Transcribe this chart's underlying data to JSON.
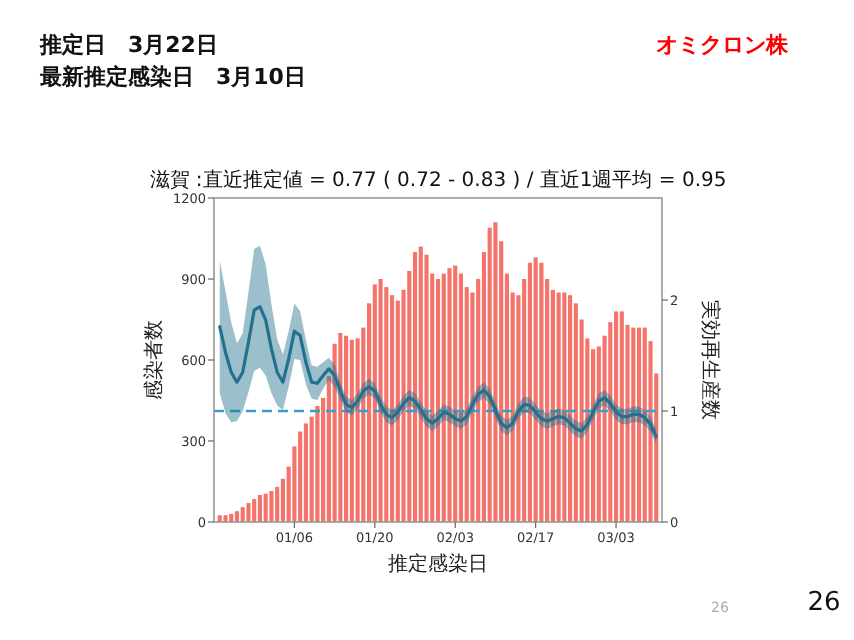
{
  "chart_data": {
    "type": "bar",
    "title": "滋賀 :直近推定値 = 0.77 ( 0.72 - 0.83 ) / 直近1週平均 = 0.95",
    "xlabel": "推定感染日",
    "ylabel": "感染者数",
    "y2label": "実効再生産数",
    "annotations": [
      "推定日　3月22日",
      "最新推定感染日　3月10日",
      "オミクロン株",
      "26",
      "26"
    ],
    "categories": [
      null,
      null,
      null,
      null,
      null,
      null,
      null,
      null,
      null,
      null,
      null,
      null,
      null,
      "01/06",
      null,
      null,
      null,
      null,
      null,
      null,
      null,
      null,
      null,
      null,
      null,
      null,
      null,
      "01/20",
      null,
      null,
      null,
      null,
      null,
      null,
      null,
      null,
      null,
      null,
      null,
      null,
      null,
      "02/03",
      null,
      null,
      null,
      null,
      null,
      null,
      null,
      null,
      null,
      null,
      null,
      null,
      null,
      "02/17",
      null,
      null,
      null,
      null,
      null,
      null,
      null,
      null,
      null,
      null,
      null,
      null,
      null,
      "03/03",
      null,
      null,
      null,
      null,
      null,
      null,
      null
    ],
    "ylim": [
      0,
      1200
    ],
    "yticks": [
      0,
      300,
      600,
      900,
      1200
    ],
    "y2lim": [
      0,
      2.92
    ],
    "y2ticks": [
      0,
      1,
      2
    ],
    "ref_lines": [
      {
        "axis": "y2",
        "value": 1,
        "color": "#3a9fc6",
        "line_style": "dashed"
      }
    ],
    "series": [
      {
        "color": "#f4736b",
        "values": [
          25,
          25,
          30,
          40,
          55,
          70,
          85,
          100,
          105,
          115,
          130,
          160,
          205,
          280,
          335,
          365,
          390,
          430,
          460,
          540,
          660,
          700,
          690,
          675,
          680,
          720,
          810,
          880,
          900,
          870,
          840,
          820,
          860,
          930,
          1000,
          1020,
          990,
          920,
          900,
          920,
          940,
          950,
          920,
          870,
          850,
          900,
          1000,
          1090,
          1110,
          1040,
          920,
          850,
          840,
          900,
          960,
          980,
          960,
          900,
          860,
          850,
          850,
          840,
          810,
          750,
          680,
          640,
          650,
          690,
          740,
          780,
          780,
          730,
          720,
          720,
          720,
          670,
          550
        ]
      },
      {
        "type": "line",
        "axis": "y2",
        "color": "#23708f",
        "values": [
          1.76,
          1.53,
          1.35,
          1.26,
          1.35,
          1.62,
          1.91,
          1.94,
          1.82,
          1.56,
          1.35,
          1.26,
          1.47,
          1.72,
          1.68,
          1.44,
          1.26,
          1.25,
          1.32,
          1.38,
          1.32,
          1.18,
          1.06,
          1.03,
          1.09,
          1.18,
          1.22,
          1.18,
          1.06,
          0.97,
          0.94,
          0.99,
          1.07,
          1.12,
          1.09,
          1.01,
          0.93,
          0.89,
          0.93,
          0.99,
          0.97,
          0.93,
          0.91,
          0.95,
          1.06,
          1.15,
          1.19,
          1.13,
          1.01,
          0.89,
          0.85,
          0.89,
          1.0,
          1.06,
          1.05,
          0.99,
          0.93,
          0.91,
          0.93,
          0.95,
          0.94,
          0.89,
          0.84,
          0.82,
          0.88,
          0.99,
          1.09,
          1.12,
          1.07,
          0.99,
          0.95,
          0.95,
          0.97,
          0.97,
          0.94,
          0.88,
          0.77
        ],
        "upper": [
          2.36,
          2.08,
          1.8,
          1.61,
          1.7,
          2.07,
          2.46,
          2.49,
          2.32,
          1.96,
          1.65,
          1.51,
          1.72,
          1.97,
          1.9,
          1.64,
          1.41,
          1.4,
          1.44,
          1.48,
          1.42,
          1.26,
          1.13,
          1.1,
          1.16,
          1.25,
          1.29,
          1.25,
          1.13,
          1.04,
          1.01,
          1.06,
          1.14,
          1.19,
          1.16,
          1.08,
          1.0,
          0.96,
          1.0,
          1.06,
          1.04,
          1.0,
          0.98,
          1.02,
          1.13,
          1.22,
          1.26,
          1.2,
          1.08,
          0.96,
          0.92,
          0.96,
          1.07,
          1.13,
          1.12,
          1.06,
          1.0,
          0.98,
          1.0,
          1.02,
          1.01,
          0.96,
          0.91,
          0.89,
          0.95,
          1.06,
          1.16,
          1.19,
          1.14,
          1.06,
          1.02,
          1.02,
          1.04,
          1.04,
          1.01,
          0.95,
          0.84
        ],
        "lower": [
          1.16,
          0.98,
          0.9,
          0.91,
          1.0,
          1.17,
          1.36,
          1.39,
          1.32,
          1.16,
          1.05,
          1.01,
          1.22,
          1.47,
          1.46,
          1.24,
          1.11,
          1.1,
          1.2,
          1.28,
          1.22,
          1.1,
          0.99,
          0.96,
          1.02,
          1.11,
          1.15,
          1.11,
          0.99,
          0.9,
          0.87,
          0.92,
          1.0,
          1.05,
          1.02,
          0.94,
          0.86,
          0.82,
          0.86,
          0.92,
          0.9,
          0.86,
          0.84,
          0.88,
          0.99,
          1.08,
          1.12,
          1.06,
          0.94,
          0.82,
          0.78,
          0.82,
          0.93,
          0.99,
          0.98,
          0.92,
          0.86,
          0.84,
          0.86,
          0.88,
          0.87,
          0.82,
          0.77,
          0.75,
          0.81,
          0.92,
          1.02,
          1.05,
          1.0,
          0.92,
          0.88,
          0.88,
          0.9,
          0.9,
          0.87,
          0.81,
          0.7
        ]
      }
    ]
  }
}
